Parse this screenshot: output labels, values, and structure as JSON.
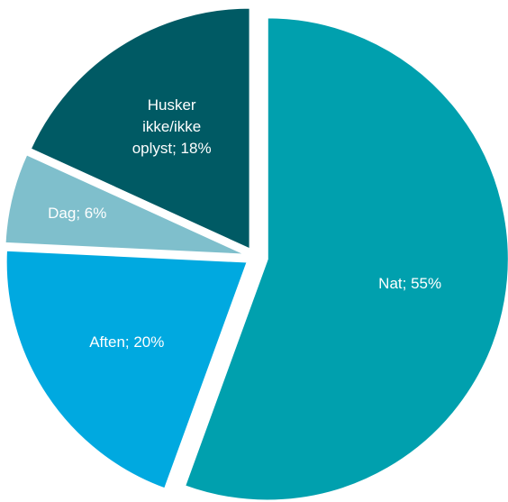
{
  "chart_data": {
    "type": "pie",
    "values": [
      55,
      20,
      6,
      18
    ],
    "value_labels": [
      "Nat; 55%",
      "Aften; 20%",
      "Dag; 6%",
      "Husker ikke/ikke oplyst; 18%"
    ],
    "colors": [
      "#00a0ae",
      "#00a9e0",
      "#7fbfcc",
      "#005a64"
    ]
  }
}
